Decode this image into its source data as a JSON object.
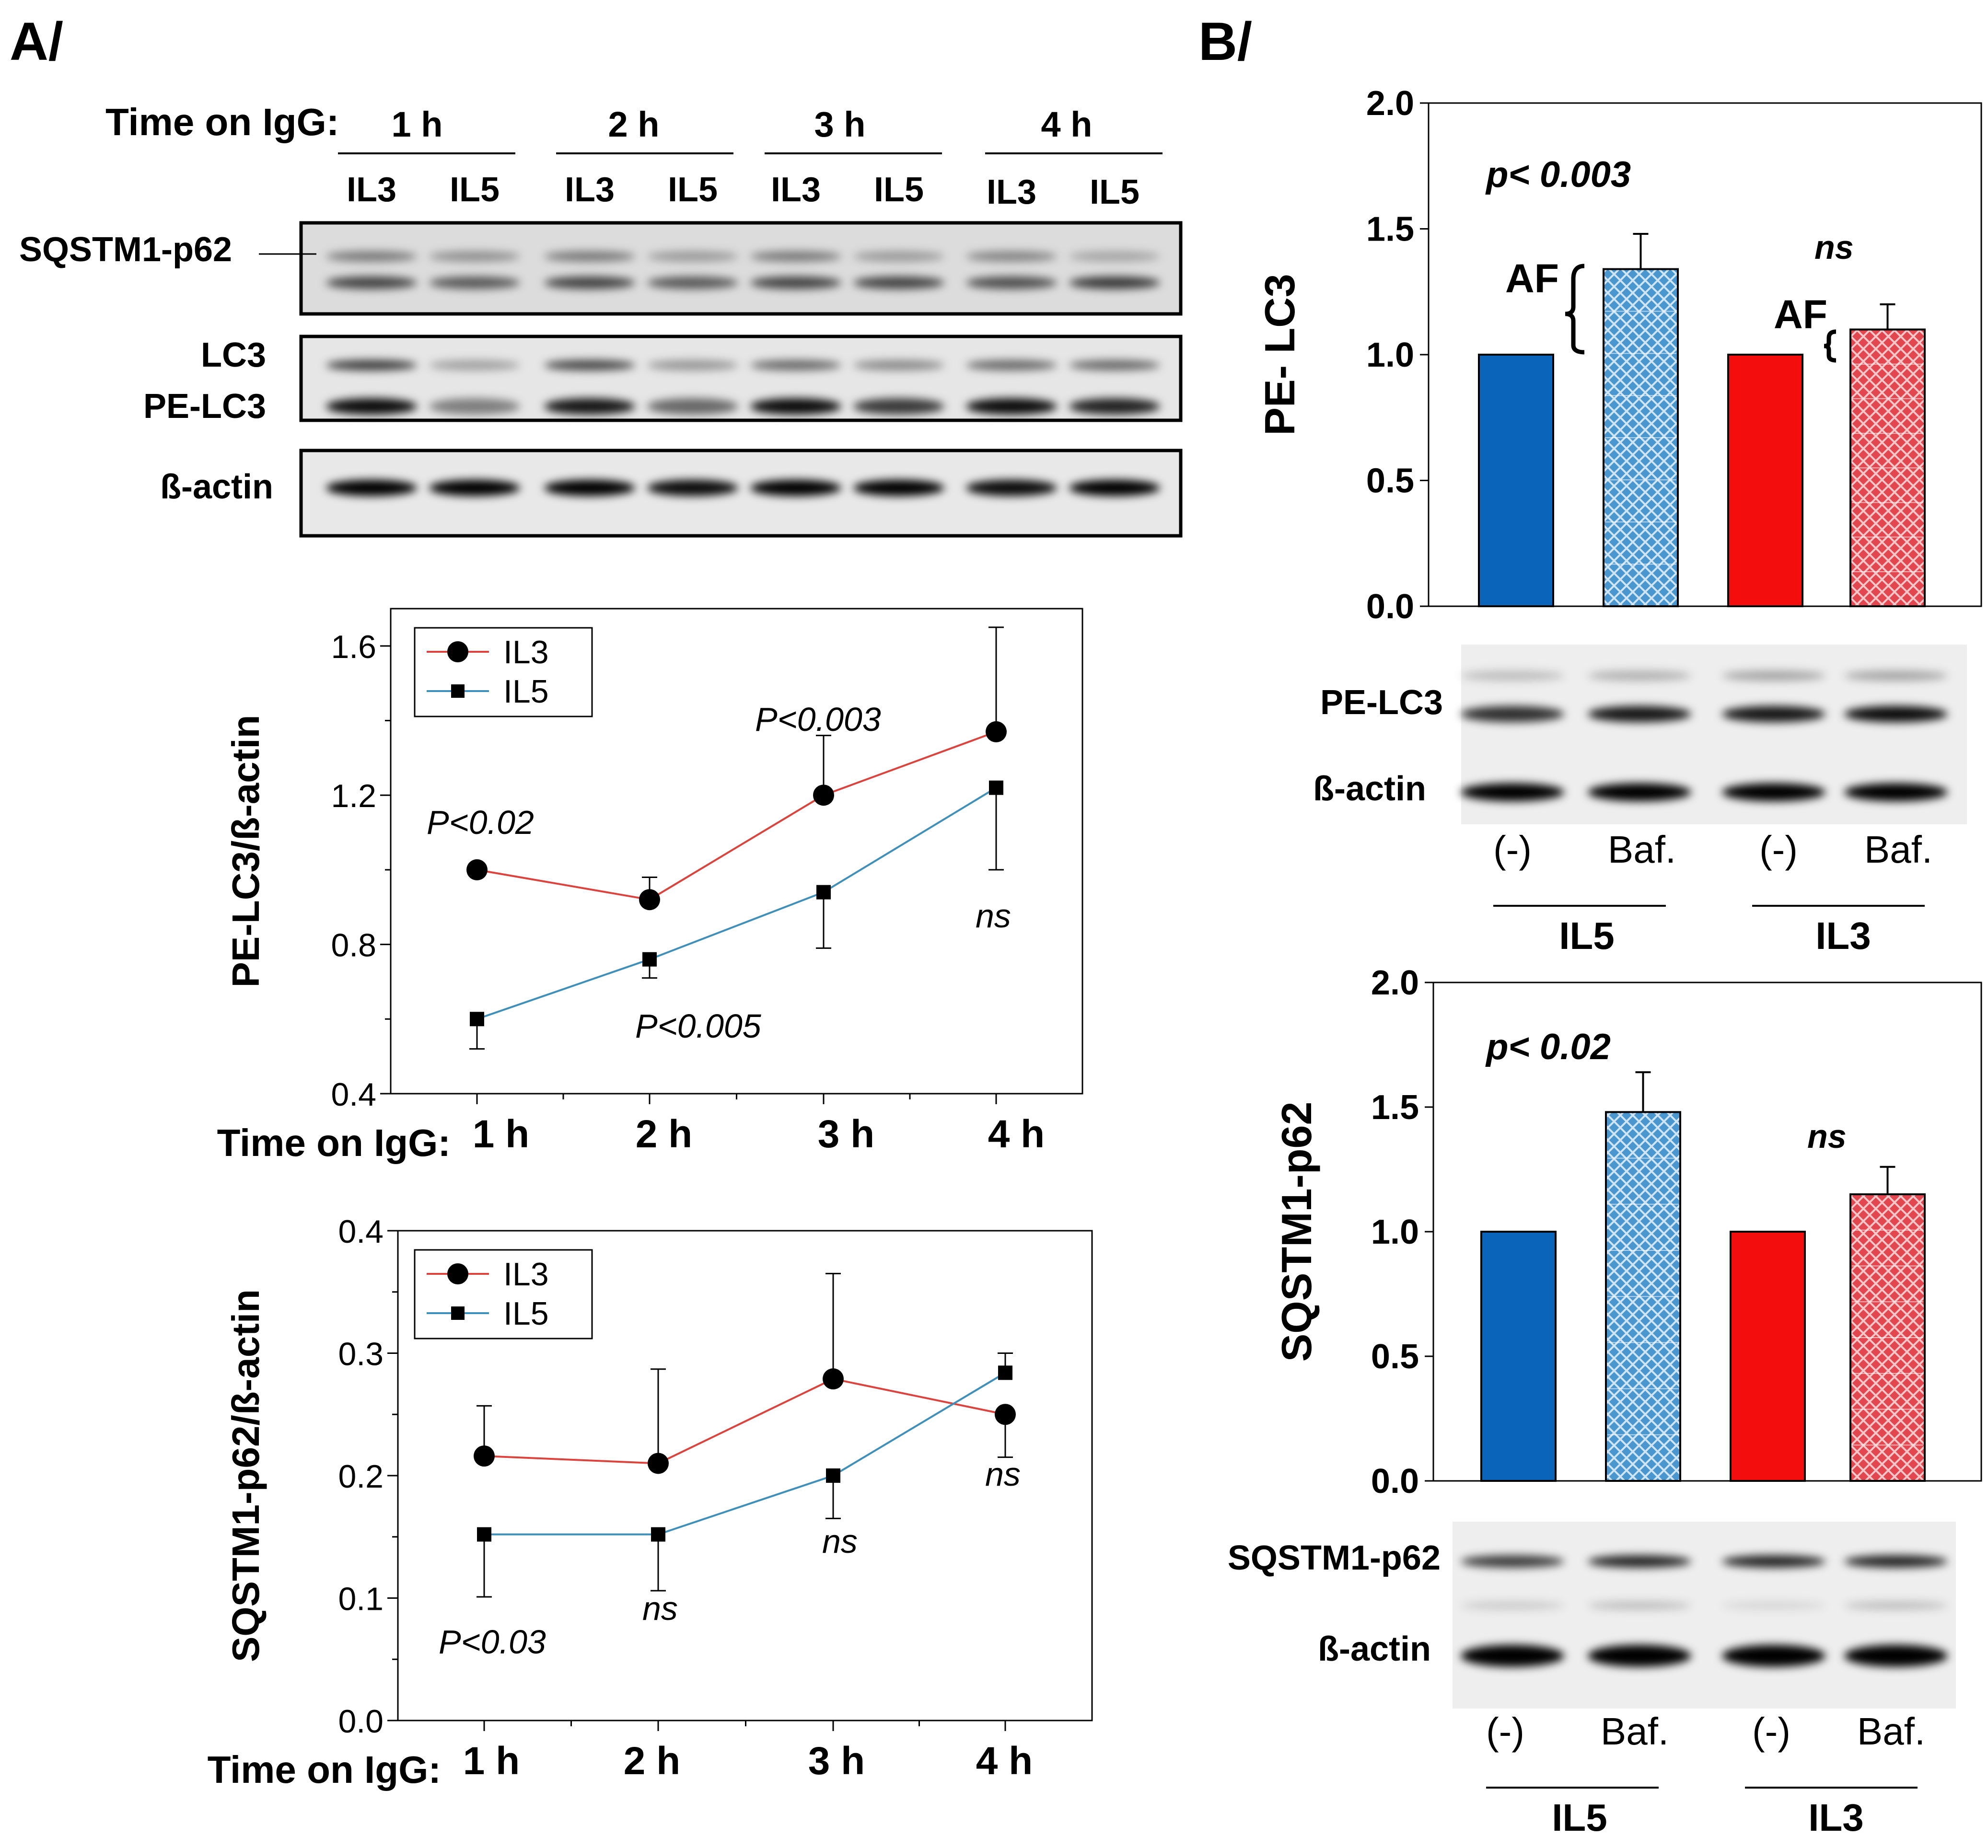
{
  "panel_a": {
    "label": "A/",
    "blot": {
      "time_label": "Time on IgG:",
      "time_groups": [
        "1 h",
        "2 h",
        "3 h",
        "4 h"
      ],
      "lane_labels": [
        "IL3",
        "IL5",
        "IL3",
        "IL5",
        "IL3",
        "IL5",
        "IL3",
        "IL5"
      ],
      "row_labels": {
        "sqstm1": "SQSTM1-p62",
        "lc3": "LC3",
        "pe_lc3": "PE-LC3",
        "actin": "ß-actin"
      }
    }
  },
  "panel_b": {
    "label": "B/",
    "blot_top": {
      "pe_lc3": "PE-LC3",
      "actin": "ß-actin"
    },
    "blot_bottom": {
      "sqstm1": "SQSTM1-p62",
      "actin": "ß-actin"
    },
    "lane_labels": [
      "(-)",
      "Baf.",
      "(-)",
      "Baf."
    ],
    "group_labels": [
      "IL5",
      "IL3"
    ]
  },
  "colors": {
    "il3": "#d9453e",
    "il5": "#3f8fb8",
    "blue_bar": "#0a64b9",
    "red_bar": "#f40d0d"
  },
  "chart_data": [
    {
      "type": "line",
      "id": "pe_lc3_time",
      "xlabel": "Time on IgG:",
      "ylabel": "PE-LC3/ß-actin",
      "categories": [
        "1 h",
        "2 h",
        "3 h",
        "4 h"
      ],
      "ylim": [
        0.4,
        1.7
      ],
      "yticks": [
        "0.4",
        "0.8",
        "1.2",
        "1.6"
      ],
      "legend": [
        "IL3",
        "IL5"
      ],
      "series": [
        {
          "name": "IL3",
          "values": [
            1.0,
            0.92,
            1.2,
            1.37
          ],
          "err_up": [
            0,
            0.06,
            0.16,
            0.28
          ],
          "err_down": [
            0,
            0,
            0,
            0
          ],
          "marker": "circle"
        },
        {
          "name": "IL5",
          "values": [
            0.6,
            0.76,
            0.94,
            1.22
          ],
          "err_up": [
            0,
            0,
            0,
            0
          ],
          "err_down": [
            0.08,
            0.05,
            0.15,
            0.22
          ],
          "marker": "square"
        }
      ],
      "annotations": [
        "P<0.02",
        "P<0.005",
        "P<0.003",
        "ns"
      ]
    },
    {
      "type": "line",
      "id": "sqstm1_time",
      "xlabel": "Time on IgG:",
      "ylabel": "SQSTM1-p62/ß-actin",
      "categories": [
        "1 h",
        "2 h",
        "3 h",
        "4 h"
      ],
      "ylim": [
        0.0,
        0.4
      ],
      "yticks": [
        "0.0",
        "0.1",
        "0.2",
        "0.3",
        "0.4"
      ],
      "legend": [
        "IL3",
        "IL5"
      ],
      "series": [
        {
          "name": "IL3",
          "values": [
            0.216,
            0.21,
            0.279,
            0.25
          ],
          "err_up": [
            0.041,
            0.077,
            0.086,
            0
          ],
          "err_down": [
            0,
            0,
            0,
            0.035
          ],
          "marker": "circle"
        },
        {
          "name": "IL5",
          "values": [
            0.152,
            0.152,
            0.2,
            0.284
          ],
          "err_up": [
            0,
            0,
            0,
            0.016
          ],
          "err_down": [
            0.051,
            0.046,
            0.035,
            0
          ],
          "marker": "square"
        }
      ],
      "annotations": [
        "P<0.03",
        "ns",
        "ns",
        "ns"
      ]
    },
    {
      "type": "bar",
      "id": "pe_lc3_baf",
      "ylabel": "PE- LC3",
      "categories": [
        "IL5 (-)",
        "IL5 Baf.",
        "IL3 (-)",
        "IL3 Baf."
      ],
      "values": [
        1.0,
        1.34,
        1.0,
        1.1
      ],
      "err_up": [
        0,
        0.14,
        0,
        0.1
      ],
      "ylim": [
        0.0,
        2.0
      ],
      "yticks": [
        "0.0",
        "0.5",
        "1.0",
        "1.5",
        "2.0"
      ],
      "annotations": [
        "p< 0.003",
        "ns",
        "AF",
        "AF"
      ]
    },
    {
      "type": "bar",
      "id": "sqstm1_baf",
      "ylabel": "SQSTM1-p62",
      "categories": [
        "IL5 (-)",
        "IL5 Baf.",
        "IL3 (-)",
        "IL3 Baf."
      ],
      "values": [
        1.0,
        1.48,
        1.0,
        1.15
      ],
      "err_up": [
        0,
        0.16,
        0,
        0.11
      ],
      "ylim": [
        0.0,
        2.0
      ],
      "yticks": [
        "0.0",
        "0.5",
        "1.0",
        "1.5",
        "2.0"
      ],
      "annotations": [
        "p< 0.02",
        "ns"
      ]
    }
  ]
}
